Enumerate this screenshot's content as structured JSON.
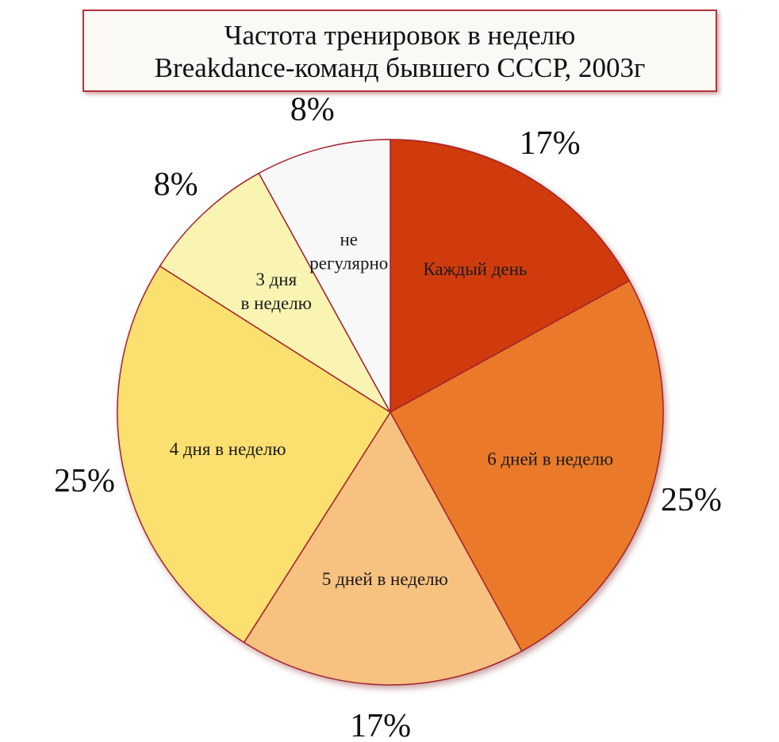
{
  "chart_data": {
    "type": "pie",
    "title_lines": [
      "Частота тренировок в неделю",
      "Breakdance-команд бывшего СССР, 2003г"
    ],
    "start_angle_deg": 0,
    "direction": "clockwise",
    "slices": [
      {
        "label_lines": [
          "Каждый день"
        ],
        "value": 17,
        "percent_label": "17%",
        "color": "#cf3a0a"
      },
      {
        "label_lines": [
          "6 дней в неделю"
        ],
        "value": 25,
        "percent_label": "25%",
        "color": "#ea7a2c"
      },
      {
        "label_lines": [
          "5 дней в неделю"
        ],
        "value": 17,
        "percent_label": "17%",
        "color": "#f7c17f"
      },
      {
        "label_lines": [
          "4 дня в неделю"
        ],
        "value": 25,
        "percent_label": "25%",
        "color": "#fbe070"
      },
      {
        "label_lines": [
          "3 дня",
          "в неделю"
        ],
        "value": 8,
        "percent_label": "8%",
        "color": "#faf4b3"
      },
      {
        "label_lines": [
          "не",
          "регулярно"
        ],
        "value": 8,
        "percent_label": "8%",
        "color": "#f8f8f8"
      }
    ],
    "edge_color": "#a4222e"
  }
}
